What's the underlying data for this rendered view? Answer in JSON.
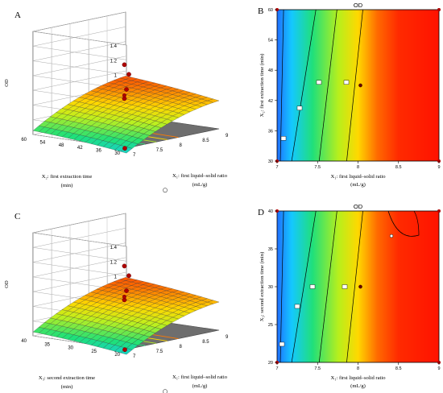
{
  "chart_data": [
    {
      "panel_label": "A",
      "type": "surface",
      "zlabel": "OD",
      "xlabel_line1": "X₁: first liquid–solid ratio",
      "xlabel_line2": "(mL/g)",
      "ylabel_line1": "X₂: first extraction time",
      "ylabel_line2": "(min)",
      "z_ticks": [
        "0",
        "0.2",
        "0.4",
        "0.6",
        "0.8",
        "1",
        "1.2",
        "1.4"
      ],
      "x_ticks": [
        "7",
        "7.5",
        "8",
        "8.5",
        "9"
      ],
      "y_ticks": [
        "30",
        "36",
        "42",
        "48",
        "54",
        "60"
      ],
      "xlim": [
        7,
        9
      ],
      "ylim": [
        30,
        60
      ],
      "zlim": [
        0,
        1.4
      ]
    },
    {
      "panel_label": "B",
      "type": "contour",
      "title": "OD",
      "xlabel": "X₁: first liquid–solid ratio",
      "xlabel_unit": "(mL/g)",
      "ylabel": "X₂: first extraction time (min)",
      "x_ticks": [
        "7",
        "7.5",
        "8",
        "8.5",
        "9"
      ],
      "y_ticks": [
        "30",
        "36",
        "42",
        "48",
        "54",
        "60"
      ],
      "xlim": [
        7,
        9
      ],
      "ylim": [
        30,
        60
      ],
      "contour_labels": [
        "0.6",
        "0.7",
        "0.8",
        "0.9"
      ],
      "design_point": [
        8,
        45
      ]
    },
    {
      "panel_label": "C",
      "type": "surface",
      "zlabel": "OD",
      "xlabel_line1": "X₁: first liquid–solid ratio",
      "xlabel_line2": "(mL/g)",
      "ylabel_line1": "X₃: second extraction time",
      "ylabel_line2": "(min)",
      "z_ticks": [
        "0",
        "0.2",
        "0.4",
        "0.6",
        "0.8",
        "1",
        "1.2",
        "1.4"
      ],
      "x_ticks": [
        "7",
        "7.5",
        "8",
        "8.5",
        "9"
      ],
      "y_ticks": [
        "20",
        "25",
        "30",
        "35",
        "40"
      ],
      "xlim": [
        7,
        9
      ],
      "ylim": [
        20,
        40
      ],
      "zlim": [
        0,
        1.4
      ]
    },
    {
      "panel_label": "D",
      "type": "contour",
      "title": "OD",
      "xlabel": "X₁: first liquid–solid ratio",
      "xlabel_unit": "(mL/g)",
      "ylabel": "X₃: second extraction time (min)",
      "x_ticks": [
        "7",
        "7.5",
        "8",
        "8.5",
        "9"
      ],
      "y_ticks": [
        "20",
        "25",
        "30",
        "35",
        "40"
      ],
      "xlim": [
        7,
        9
      ],
      "ylim": [
        20,
        40
      ],
      "contour_labels": [
        "0.6",
        "0.7",
        "0.8",
        "0.9"
      ],
      "design_point": [
        8,
        30
      ]
    }
  ]
}
